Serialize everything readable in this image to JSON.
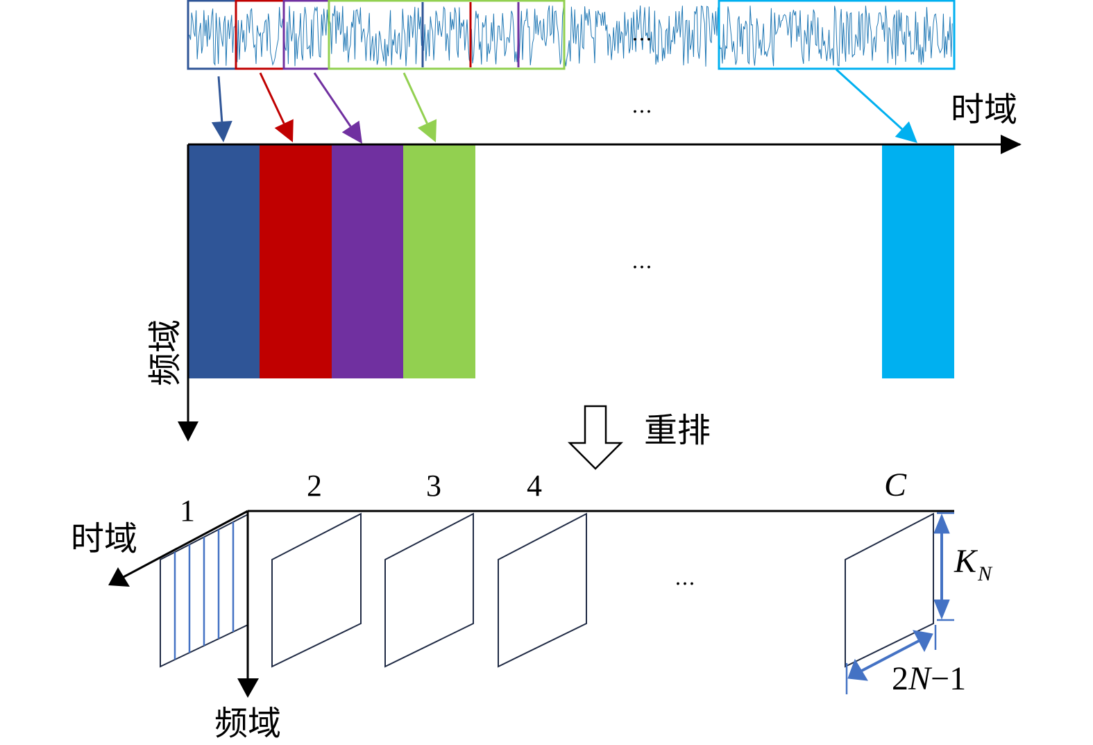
{
  "colors": {
    "segment_1": "#2F5597",
    "segment_2": "#C00000",
    "segment_3": "#7030A0",
    "segment_4": "#92D050",
    "segment_last": "#00B0F0",
    "signal": "#1F77B4",
    "dimension": "#4472C4"
  },
  "top": {
    "ellipsis_signal": "…",
    "ellipsis_arrows": "…",
    "ellipsis_bars": "…",
    "time_axis_label": "时域",
    "freq_axis_label": "频域"
  },
  "rearrange_label": "重排",
  "bottom": {
    "panel_labels": [
      "1",
      "2",
      "3",
      "4",
      "C"
    ],
    "ellipsis": "…",
    "time_axis_label": "时域",
    "freq_axis_label": "频域",
    "height_label_main": "K",
    "height_label_sub": "N",
    "width_label_a": "2",
    "width_label_n": "N",
    "width_label_b": "−1"
  }
}
